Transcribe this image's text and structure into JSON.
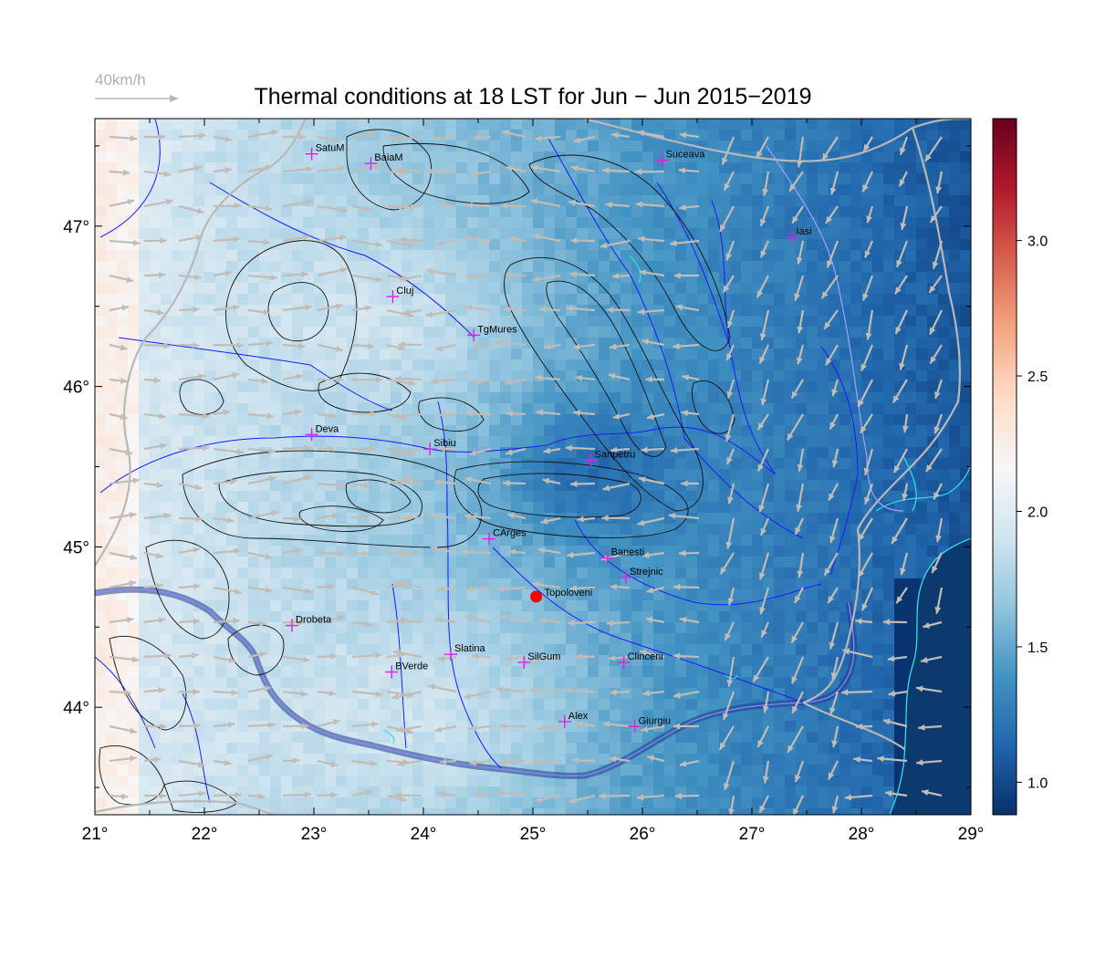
{
  "title": "Thermal conditions at 18 LST for Jun − Jun  2015−2019",
  "wind_reference": {
    "label": "40km/h",
    "speed_kmh": 40
  },
  "map": {
    "lon_range": [
      21,
      29
    ],
    "lat_range": [
      43.33,
      47.67
    ],
    "lon_ticks": [
      21,
      22,
      23,
      24,
      25,
      26,
      27,
      28,
      29
    ],
    "lat_ticks": [
      44,
      45,
      46,
      47
    ],
    "lon_labels": [
      "21°",
      "22°",
      "23°",
      "24°",
      "25°",
      "26°",
      "27°",
      "28°",
      "29°"
    ],
    "lat_labels": [
      "44°",
      "45°",
      "46°",
      "47°"
    ],
    "colorscale": {
      "range": [
        0.88,
        3.45
      ],
      "ticks": [
        1.0,
        1.5,
        2.0,
        2.5,
        3.0
      ],
      "tick_labels": [
        "1.0",
        "1.5",
        "2.0",
        "2.5",
        "3.0"
      ],
      "colors": [
        "#08306b",
        "#2166ac",
        "#4393c3",
        "#92c5de",
        "#d1e5f0",
        "#f7f7f7",
        "#fddbc7",
        "#f4a582",
        "#d6604d",
        "#b2182b",
        "#67001f"
      ]
    },
    "colors": {
      "river": "#1a1aff",
      "contour": "#111111",
      "border": "#b8b8b8",
      "coast": "#33e0e8",
      "wind_arrow": "#c2bcb6",
      "city_marker": "#e020e0",
      "highlight": "#ff0000"
    }
  },
  "cities": [
    {
      "name": "SatuM",
      "lon": 22.98,
      "lat": 47.45
    },
    {
      "name": "BaiaM",
      "lon": 23.52,
      "lat": 47.39
    },
    {
      "name": "Suceava",
      "lon": 26.18,
      "lat": 47.41
    },
    {
      "name": "Iasi",
      "lon": 27.37,
      "lat": 46.93
    },
    {
      "name": "Cluj",
      "lon": 23.72,
      "lat": 46.56
    },
    {
      "name": "TgMures",
      "lon": 24.46,
      "lat": 46.32
    },
    {
      "name": "Deva",
      "lon": 22.98,
      "lat": 45.7
    },
    {
      "name": "Sibiu",
      "lon": 24.06,
      "lat": 45.61
    },
    {
      "name": "Sanpetru",
      "lon": 25.53,
      "lat": 45.54
    },
    {
      "name": "CArges",
      "lon": 24.6,
      "lat": 45.05
    },
    {
      "name": "Banesti",
      "lon": 25.68,
      "lat": 44.93
    },
    {
      "name": "Strejnic",
      "lon": 25.85,
      "lat": 44.81
    },
    {
      "name": "Drobeta",
      "lon": 22.8,
      "lat": 44.51
    },
    {
      "name": "Slatina",
      "lon": 24.25,
      "lat": 44.33
    },
    {
      "name": "SilGum",
      "lon": 24.92,
      "lat": 44.28
    },
    {
      "name": "Clinceni",
      "lon": 25.83,
      "lat": 44.28
    },
    {
      "name": "BVerde",
      "lon": 23.71,
      "lat": 44.22
    },
    {
      "name": "Alex",
      "lon": 25.29,
      "lat": 43.91
    },
    {
      "name": "Giurgiu",
      "lon": 25.93,
      "lat": 43.88
    }
  ],
  "highlight_site": {
    "name": "Topoloveni",
    "lon": 25.03,
    "lat": 44.69
  }
}
